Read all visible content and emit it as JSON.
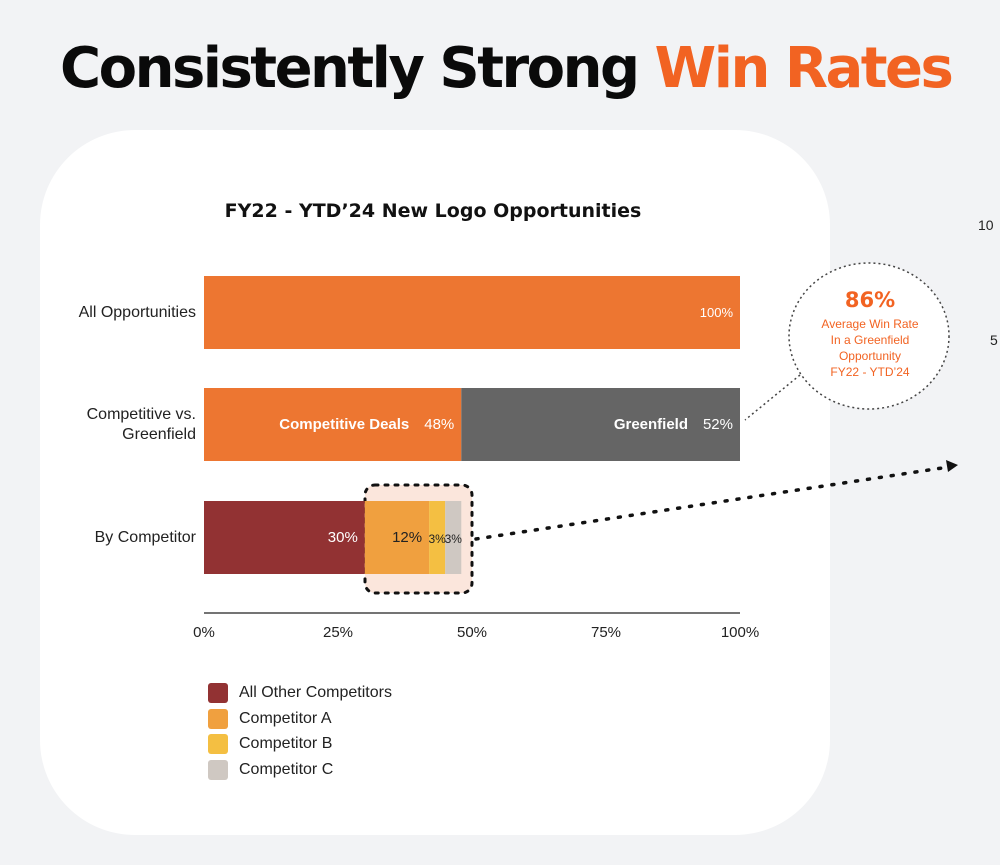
{
  "headline": {
    "part1": "Consistently Strong",
    "part2": "Win Rates"
  },
  "colors": {
    "orange": "#ed7631",
    "gray": "#656565",
    "all_other": "#923233",
    "competitor_a": "#f0a03f",
    "competitor_b": "#f4bf42",
    "competitor_c": "#cfc8c2",
    "highlight": "#fbe6dc",
    "accent": "#f26322"
  },
  "chart_data": {
    "type": "bar",
    "orientation": "horizontal",
    "stacked": true,
    "title": "FY22 - YTD’24 New Logo Opportunities",
    "categories": [
      "All Opportunities",
      "Competitive vs. Greenfield",
      "By Competitor"
    ],
    "bars": [
      {
        "category": "All Opportunities",
        "segments": [
          {
            "name": "All Opportunities",
            "value": 100,
            "label": "100%",
            "color_key": "orange"
          }
        ]
      },
      {
        "category": "Competitive vs. Greenfield",
        "segments": [
          {
            "name": "Competitive Deals",
            "value": 48,
            "label": "48%",
            "color_key": "orange"
          },
          {
            "name": "Greenfield",
            "value": 52,
            "label": "52%",
            "color_key": "gray"
          }
        ]
      },
      {
        "category": "By Competitor",
        "segments": [
          {
            "name": "All Other Competitors",
            "value": 30,
            "label": "30%",
            "color_key": "all_other"
          },
          {
            "name": "Competitor A",
            "value": 12,
            "label": "12%",
            "color_key": "competitor_a"
          },
          {
            "name": "Competitor B",
            "value": 3,
            "label": "3%",
            "color_key": "competitor_b"
          },
          {
            "name": "Competitor C",
            "value": 3,
            "label": "3%",
            "color_key": "competitor_c"
          }
        ]
      }
    ],
    "xlim": [
      0,
      100
    ],
    "x_ticks": [
      "0%",
      "25%",
      "50%",
      "75%",
      "100%"
    ],
    "legend": [
      {
        "name": "All Other Competitors",
        "color_key": "all_other"
      },
      {
        "name": "Competitor A",
        "color_key": "competitor_a"
      },
      {
        "name": "Competitor B",
        "color_key": "competitor_b"
      },
      {
        "name": "Competitor C",
        "color_key": "competitor_c"
      }
    ],
    "legend_position": "bottom-left",
    "grid": false
  },
  "callout": {
    "stat": "86%",
    "lines": [
      "Average Win Rate",
      "In a Greenfield",
      "Opportunity",
      "FY22 - YTD’24"
    ]
  },
  "edge_text": [
    "10",
    "5"
  ]
}
